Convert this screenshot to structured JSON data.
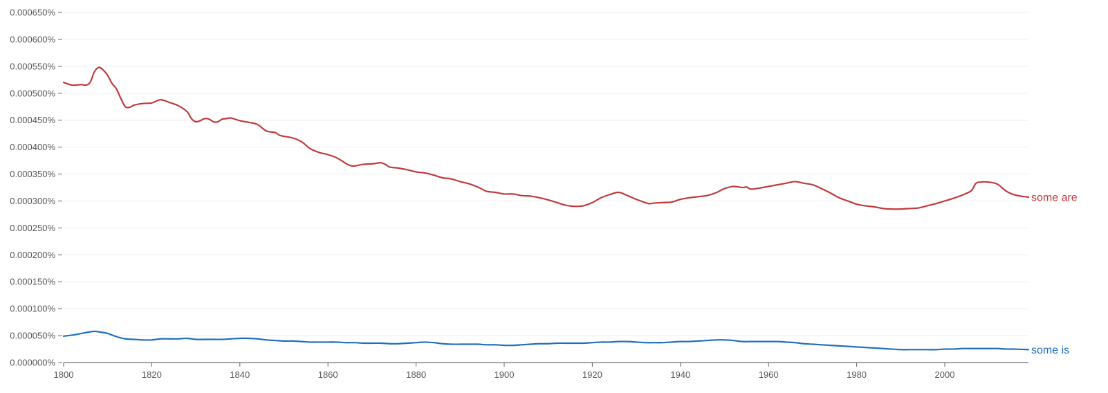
{
  "chart_data": {
    "type": "line",
    "title": "",
    "xlabel": "",
    "ylabel": "",
    "xlim": [
      1800,
      2019
    ],
    "ylim": [
      0,
      0.00065
    ],
    "grid": true,
    "legend": "inline-right",
    "x_ticks": [
      "1800",
      "1820",
      "1840",
      "1860",
      "1880",
      "1900",
      "1920",
      "1940",
      "1960",
      "1980",
      "2000"
    ],
    "y_ticks": [
      "0.000000%",
      "0.000050%",
      "0.000100%",
      "0.000150%",
      "0.000200%",
      "0.000250%",
      "0.000300%",
      "0.000350%",
      "0.000400%",
      "0.000450%",
      "0.000500%",
      "0.000550%",
      "0.000600%",
      "0.000650%"
    ],
    "series": [
      {
        "name": "some are",
        "color": "#c0393b",
        "x": [
          1800,
          1802,
          1804,
          1805,
          1806,
          1807,
          1808,
          1809,
          1810,
          1811,
          1812,
          1813,
          1814,
          1815,
          1816,
          1818,
          1820,
          1822,
          1824,
          1826,
          1828,
          1829,
          1830,
          1831,
          1832,
          1833,
          1834,
          1835,
          1836,
          1837,
          1838,
          1840,
          1842,
          1844,
          1846,
          1848,
          1849,
          1850,
          1852,
          1854,
          1856,
          1858,
          1860,
          1862,
          1864,
          1865,
          1866,
          1868,
          1870,
          1871,
          1872,
          1873,
          1874,
          1876,
          1878,
          1880,
          1882,
          1884,
          1886,
          1888,
          1890,
          1892,
          1894,
          1896,
          1898,
          1900,
          1902,
          1904,
          1906,
          1908,
          1910,
          1912,
          1914,
          1916,
          1918,
          1920,
          1922,
          1924,
          1926,
          1928,
          1930,
          1932,
          1933,
          1934,
          1936,
          1938,
          1940,
          1942,
          1944,
          1946,
          1948,
          1950,
          1952,
          1954,
          1955,
          1956,
          1958,
          1960,
          1962,
          1964,
          1966,
          1968,
          1970,
          1972,
          1974,
          1976,
          1978,
          1980,
          1982,
          1984,
          1986,
          1988,
          1990,
          1992,
          1994,
          1996,
          1998,
          2000,
          2002,
          2004,
          2006,
          2007,
          2008,
          2010,
          2012,
          2014,
          2016,
          2019
        ],
        "values": [
          0.00052,
          0.000515,
          0.000516,
          0.000515,
          0.00052,
          0.00054,
          0.000548,
          0.000543,
          0.000533,
          0.000518,
          0.000508,
          0.00049,
          0.000475,
          0.000474,
          0.000478,
          0.000481,
          0.000482,
          0.000488,
          0.000483,
          0.000477,
          0.000466,
          0.000453,
          0.000447,
          0.000449,
          0.000453,
          0.000452,
          0.000447,
          0.000447,
          0.000452,
          0.000453,
          0.000454,
          0.000449,
          0.000446,
          0.000442,
          0.00043,
          0.000427,
          0.000422,
          0.00042,
          0.000417,
          0.00041,
          0.000397,
          0.00039,
          0.000386,
          0.00038,
          0.00037,
          0.000366,
          0.000365,
          0.000368,
          0.000369,
          0.00037,
          0.000371,
          0.000368,
          0.000363,
          0.000361,
          0.000358,
          0.000354,
          0.000352,
          0.000348,
          0.000343,
          0.000341,
          0.000336,
          0.000332,
          0.000326,
          0.000318,
          0.000316,
          0.000313,
          0.000313,
          0.00031,
          0.000309,
          0.000306,
          0.000302,
          0.000297,
          0.000292,
          0.00029,
          0.000291,
          0.000297,
          0.000306,
          0.000312,
          0.000316,
          0.00031,
          0.000303,
          0.000297,
          0.000295,
          0.000296,
          0.000297,
          0.000298,
          0.000303,
          0.000306,
          0.000308,
          0.00031,
          0.000315,
          0.000323,
          0.000327,
          0.000325,
          0.000326,
          0.000322,
          0.000324,
          0.000327,
          0.00033,
          0.000333,
          0.000336,
          0.000333,
          0.00033,
          0.000323,
          0.000315,
          0.000306,
          0.0003,
          0.000294,
          0.000291,
          0.000289,
          0.000286,
          0.000285,
          0.000285,
          0.000286,
          0.000287,
          0.000291,
          0.000295,
          0.0003,
          0.000305,
          0.000311,
          0.000319,
          0.000332,
          0.000335,
          0.000335,
          0.000331,
          0.000318,
          0.000311,
          0.000307
        ]
      },
      {
        "name": "some is",
        "color": "#1f6ebf",
        "x": [
          1800,
          1802,
          1804,
          1806,
          1807,
          1808,
          1810,
          1812,
          1814,
          1816,
          1818,
          1820,
          1822,
          1824,
          1826,
          1828,
          1830,
          1832,
          1834,
          1836,
          1838,
          1840,
          1842,
          1844,
          1846,
          1848,
          1850,
          1852,
          1854,
          1856,
          1858,
          1860,
          1862,
          1864,
          1866,
          1868,
          1870,
          1872,
          1874,
          1876,
          1878,
          1880,
          1882,
          1884,
          1886,
          1888,
          1890,
          1892,
          1894,
          1896,
          1898,
          1900,
          1902,
          1904,
          1906,
          1908,
          1910,
          1912,
          1914,
          1916,
          1918,
          1920,
          1922,
          1924,
          1926,
          1928,
          1930,
          1932,
          1934,
          1936,
          1938,
          1940,
          1942,
          1944,
          1946,
          1948,
          1950,
          1952,
          1954,
          1956,
          1958,
          1960,
          1962,
          1964,
          1966,
          1968,
          1970,
          1972,
          1974,
          1976,
          1978,
          1980,
          1982,
          1984,
          1986,
          1988,
          1990,
          1992,
          1994,
          1996,
          1998,
          2000,
          2002,
          2004,
          2006,
          2008,
          2010,
          2012,
          2014,
          2016,
          2019
        ],
        "values": [
          4.9e-05,
          5.1e-05,
          5.4e-05,
          5.7e-05,
          5.8e-05,
          5.7e-05,
          5.4e-05,
          4.8e-05,
          4.4e-05,
          4.3e-05,
          4.2e-05,
          4.2e-05,
          4.4e-05,
          4.4e-05,
          4.4e-05,
          4.5e-05,
          4.3e-05,
          4.3e-05,
          4.3e-05,
          4.3e-05,
          4.4e-05,
          4.5e-05,
          4.5e-05,
          4.4e-05,
          4.2e-05,
          4.1e-05,
          4e-05,
          4e-05,
          3.9e-05,
          3.8e-05,
          3.8e-05,
          3.8e-05,
          3.8e-05,
          3.7e-05,
          3.7e-05,
          3.6e-05,
          3.6e-05,
          3.6e-05,
          3.5e-05,
          3.5e-05,
          3.6e-05,
          3.7e-05,
          3.8e-05,
          3.7e-05,
          3.5e-05,
          3.4e-05,
          3.4e-05,
          3.4e-05,
          3.4e-05,
          3.3e-05,
          3.3e-05,
          3.2e-05,
          3.2e-05,
          3.3e-05,
          3.4e-05,
          3.5e-05,
          3.5e-05,
          3.6e-05,
          3.6e-05,
          3.6e-05,
          3.6e-05,
          3.7e-05,
          3.8e-05,
          3.8e-05,
          3.9e-05,
          3.9e-05,
          3.8e-05,
          3.7e-05,
          3.7e-05,
          3.7e-05,
          3.8e-05,
          3.9e-05,
          3.9e-05,
          4e-05,
          4.1e-05,
          4.2e-05,
          4.2e-05,
          4.1e-05,
          3.9e-05,
          3.9e-05,
          3.9e-05,
          3.9e-05,
          3.9e-05,
          3.8e-05,
          3.7e-05,
          3.5e-05,
          3.4e-05,
          3.3e-05,
          3.2e-05,
          3.1e-05,
          3e-05,
          2.9e-05,
          2.8e-05,
          2.7e-05,
          2.6e-05,
          2.5e-05,
          2.4e-05,
          2.4e-05,
          2.4e-05,
          2.4e-05,
          2.4e-05,
          2.5e-05,
          2.5e-05,
          2.6e-05,
          2.6e-05,
          2.6e-05,
          2.6e-05,
          2.6e-05,
          2.5e-05,
          2.5e-05,
          2.4e-05
        ]
      }
    ]
  }
}
